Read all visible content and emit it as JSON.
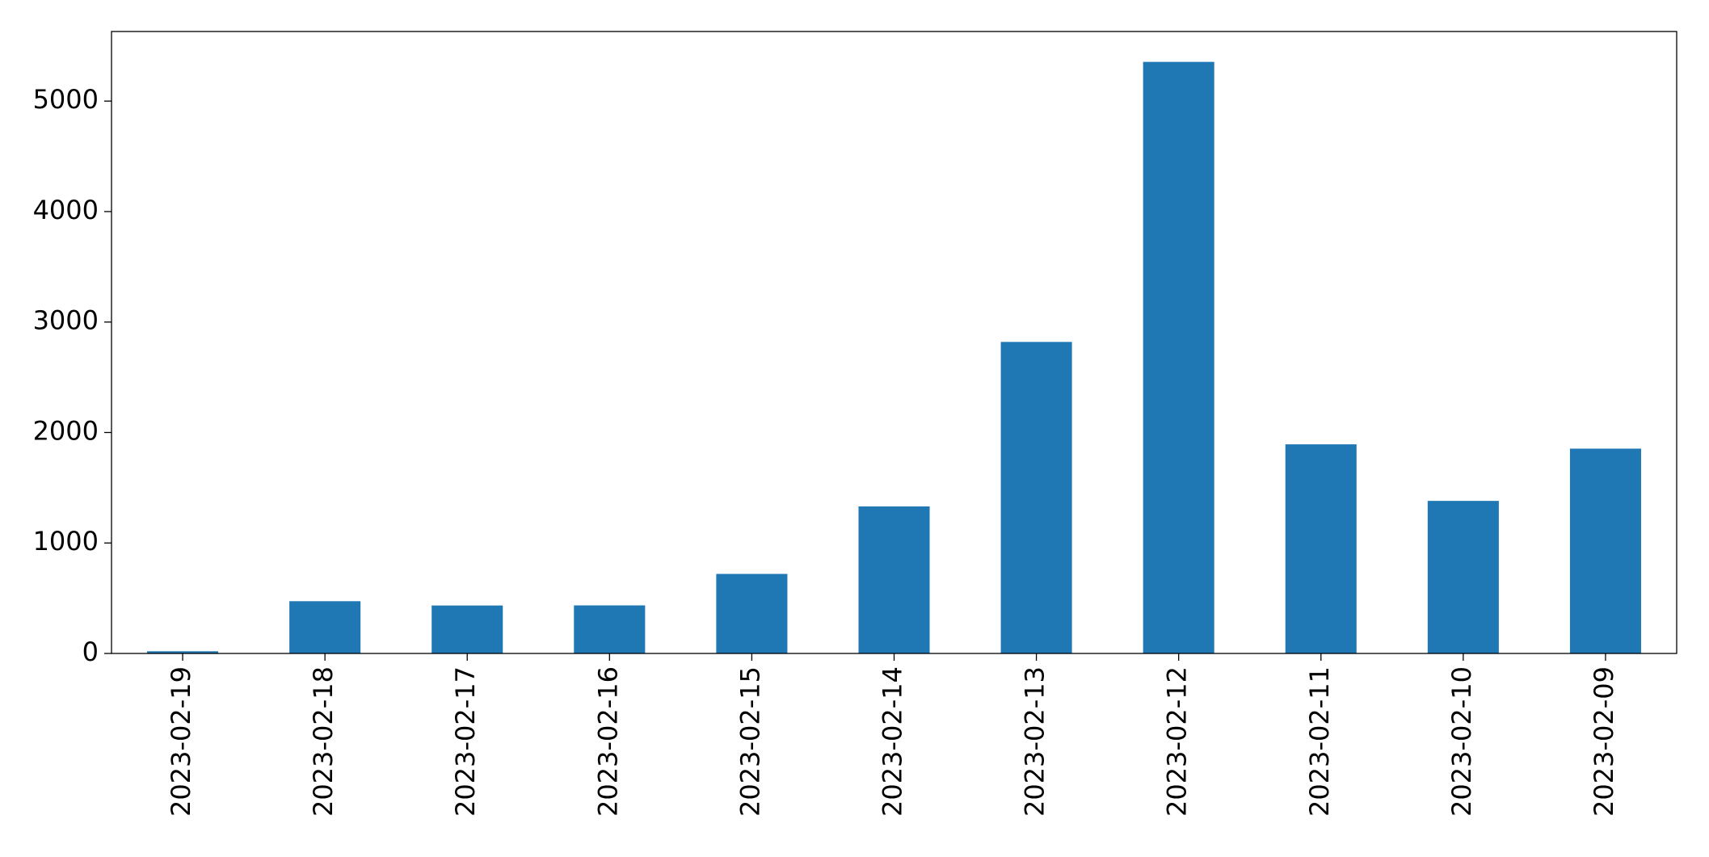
{
  "chart_data": {
    "type": "bar",
    "categories": [
      "2023-02-19",
      "2023-02-18",
      "2023-02-17",
      "2023-02-16",
      "2023-02-15",
      "2023-02-14",
      "2023-02-13",
      "2023-02-12",
      "2023-02-11",
      "2023-02-10",
      "2023-02-09"
    ],
    "values": [
      20,
      473,
      434,
      435,
      720,
      1331,
      2820,
      5355,
      1893,
      1381,
      1854
    ],
    "color": "#1f77b4",
    "ylim": [
      0,
      5630
    ],
    "yticks": [
      0,
      1000,
      2000,
      3000,
      4000,
      5000
    ],
    "grid": false
  }
}
